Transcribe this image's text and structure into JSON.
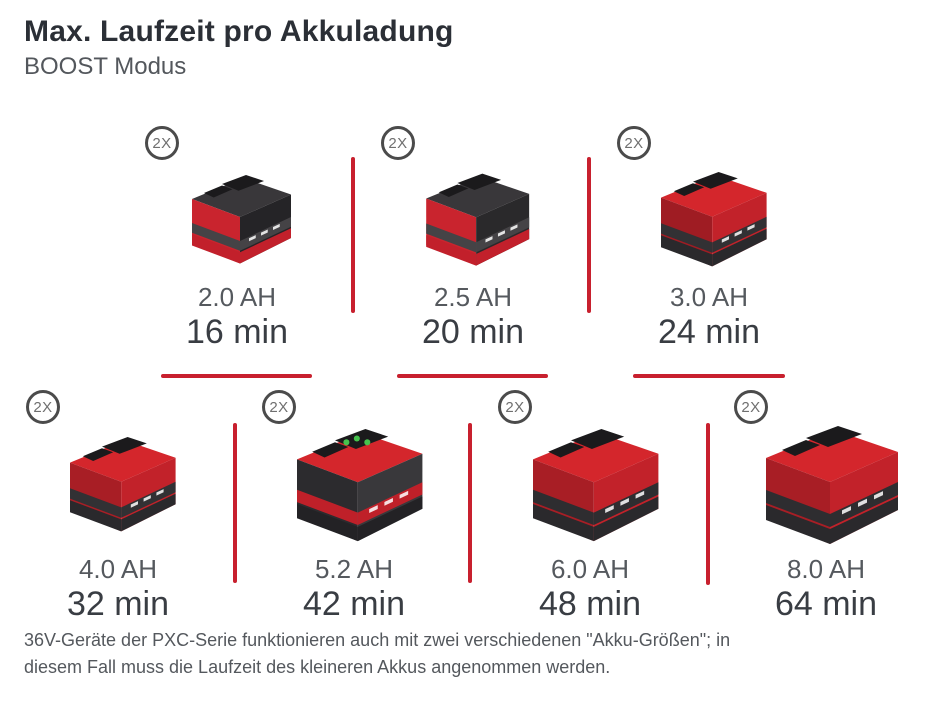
{
  "header": {
    "title": "Max. Laufzeit pro Akkuladung",
    "subtitle": "BOOST Modus"
  },
  "colors": {
    "accent_red": "#c8202e",
    "battery_red": "#d4262c",
    "battery_dark": "#2a292c",
    "title_text": "#2b2f36",
    "secondary_text": "#55595e",
    "runtime_text": "#393d43",
    "badge_border": "#4b4b4b"
  },
  "chart_data": {
    "type": "table",
    "title": "Max. Laufzeit pro Akkuladung",
    "subtitle": "BOOST Modus",
    "categories": [
      "2.0 AH",
      "2.5 AH",
      "3.0 AH",
      "4.0 AH",
      "5.2 AH",
      "6.0 AH",
      "8.0 AH"
    ],
    "values": [
      16,
      20,
      24,
      32,
      42,
      48,
      64
    ],
    "value_unit": "min",
    "category_unit": "AH",
    "quantity_per_item": "2X",
    "layout": {
      "top_row_count": 3,
      "bottom_row_count": 4,
      "grid": "staggered",
      "dividers": "red lines"
    },
    "items": [
      {
        "capacity": "2.0 AH",
        "runtime": "16 min",
        "qty": "2X",
        "art": {
          "scale": 0.75,
          "top": "#39373a",
          "left": "#c9242e",
          "right": "#252427",
          "band": "#454346",
          "rim": "#c2202b",
          "leds": false
        }
      },
      {
        "capacity": "2.5 AH",
        "runtime": "20 min",
        "qty": "2X",
        "art": {
          "scale": 0.78,
          "top": "#39373a",
          "left": "#c9242e",
          "right": "#2a292b",
          "band": "#454346",
          "rim": "#c2202b",
          "leds": false
        }
      },
      {
        "capacity": "3.0 AH",
        "runtime": "24 min",
        "qty": "2X",
        "art": {
          "scale": 0.8,
          "top": "#d4262c",
          "left": "#9f1c23",
          "right": "#c2222a",
          "band": "#323134",
          "rim": "#2a292c",
          "leds": false
        }
      },
      {
        "capacity": "4.0 AH",
        "runtime": "32 min",
        "qty": "2X",
        "art": {
          "scale": 0.8,
          "top": "#d4262c",
          "left": "#a81e25",
          "right": "#c2222a",
          "band": "#323134",
          "rim": "#2a292c",
          "leds": false
        }
      },
      {
        "capacity": "5.2 AH",
        "runtime": "42 min",
        "qty": "2X",
        "art": {
          "scale": 0.95,
          "top": "#d4262c",
          "left": "#2c2b2e",
          "right": "#39383b",
          "band": "#bf2029",
          "rim": "#232225",
          "leds": true
        }
      },
      {
        "capacity": "6.0 AH",
        "runtime": "48 min",
        "qty": "2X",
        "art": {
          "scale": 0.95,
          "top": "#d4262c",
          "left": "#a81e25",
          "right": "#c2222a",
          "band": "#2e2d30",
          "rim": "#2a292c",
          "leds": false
        }
      },
      {
        "capacity": "8.0 AH",
        "runtime": "64 min",
        "qty": "2X",
        "art": {
          "scale": 1.0,
          "top": "#d4262c",
          "left": "#a81e25",
          "right": "#c2222a",
          "band": "#2e2d30",
          "rim": "#2a292c",
          "leds": false
        }
      }
    ]
  },
  "footer": {
    "lines": [
      "36V-Geräte der PXC-Serie funktionieren auch mit zwei verschiedenen \"Akku-Größen\"; in",
      "diesem Fall muss die Laufzeit des kleineren Akkus angenommen werden."
    ]
  }
}
